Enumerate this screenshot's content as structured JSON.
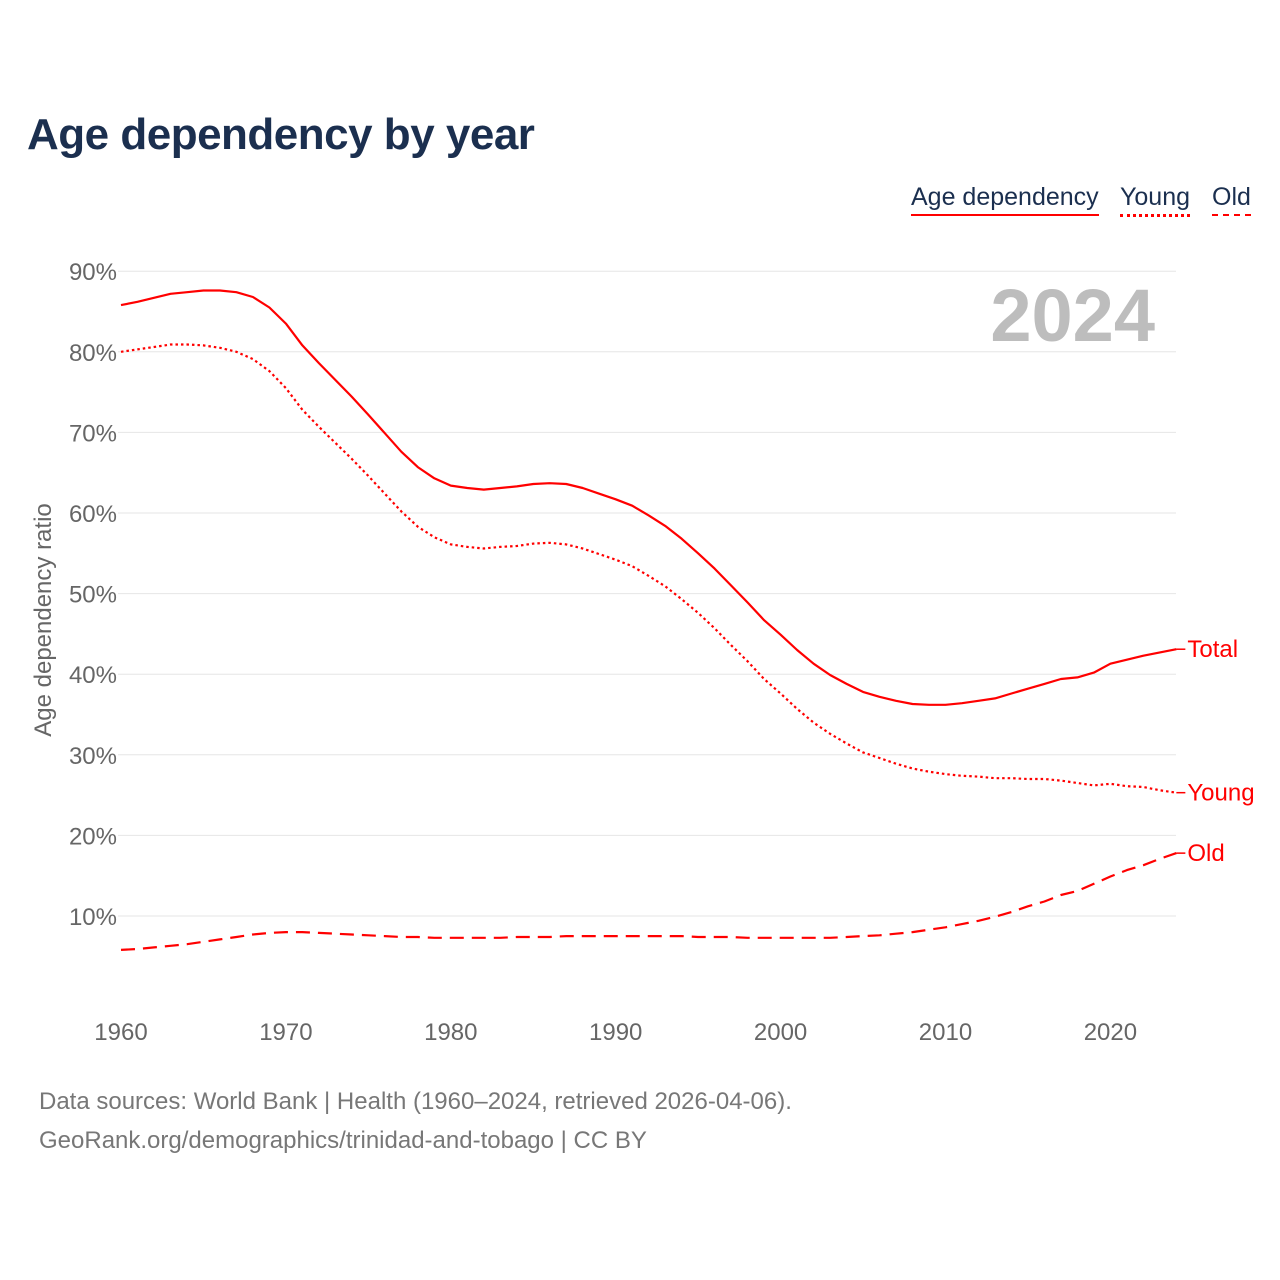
{
  "title": "Age dependency by year",
  "legend": [
    {
      "label": "Age dependency",
      "style": "solid"
    },
    {
      "label": "Young",
      "style": "dotted"
    },
    {
      "label": "Old",
      "style": "dashed"
    }
  ],
  "footer": {
    "line1": "Data sources: World Bank | Health (1960–2024, retrieved 2026-04-06).",
    "line2": "GeoRank.org/demographics/trinidad-and-tobago | CC BY"
  },
  "chart_data": {
    "type": "line",
    "title": "Age dependency by year",
    "xlabel": "",
    "ylabel": "Age dependency ratio",
    "year_watermark": "2024",
    "xlim": [
      1960,
      2024
    ],
    "ylim": [
      0,
      92
    ],
    "x_ticks": [
      1960,
      1970,
      1980,
      1990,
      2000,
      2010,
      2020
    ],
    "y_ticks": [
      10,
      20,
      30,
      40,
      50,
      60,
      70,
      80,
      90
    ],
    "y_tick_labels": [
      "10%",
      "20%",
      "30%",
      "40%",
      "50%",
      "60%",
      "70%",
      "80%",
      "90%"
    ],
    "grid": true,
    "color": "#ff0000",
    "x_start": 1960,
    "series": [
      {
        "name": "Total",
        "end_label": "Total",
        "dash": "solid",
        "values": [
          85.8,
          86.2,
          86.7,
          87.2,
          87.4,
          87.6,
          87.6,
          87.4,
          86.8,
          85.5,
          83.5,
          80.8,
          78.6,
          76.5,
          74.4,
          72.2,
          69.9,
          67.6,
          65.7,
          64.3,
          63.4,
          63.1,
          62.9,
          63.1,
          63.3,
          63.6,
          63.7,
          63.6,
          63.1,
          62.4,
          61.7,
          60.9,
          59.7,
          58.4,
          56.8,
          55.0,
          53.1,
          51.0,
          48.9,
          46.7,
          44.9,
          43.0,
          41.3,
          39.9,
          38.8,
          37.8,
          37.2,
          36.7,
          36.3,
          36.2,
          36.2,
          36.4,
          36.7,
          37.0,
          37.6,
          38.2,
          38.8,
          39.4,
          39.6,
          40.2,
          41.3,
          41.8,
          42.3,
          42.7,
          43.1
        ]
      },
      {
        "name": "Young",
        "end_label": "Young",
        "dash": "dotted",
        "values": [
          80.0,
          80.3,
          80.6,
          80.9,
          80.9,
          80.8,
          80.5,
          80.0,
          79.1,
          77.6,
          75.5,
          72.8,
          70.7,
          68.7,
          66.7,
          64.6,
          62.4,
          60.2,
          58.3,
          57.0,
          56.1,
          55.8,
          55.6,
          55.8,
          55.9,
          56.2,
          56.3,
          56.1,
          55.6,
          54.9,
          54.2,
          53.4,
          52.2,
          50.9,
          49.3,
          47.6,
          45.7,
          43.6,
          41.6,
          39.4,
          37.6,
          35.7,
          34.0,
          32.6,
          31.4,
          30.3,
          29.6,
          28.9,
          28.3,
          27.9,
          27.6,
          27.4,
          27.3,
          27.1,
          27.1,
          27.0,
          27.0,
          26.8,
          26.5,
          26.2,
          26.4,
          26.1,
          26.0,
          25.6,
          25.3
        ]
      },
      {
        "name": "Old",
        "end_label": "Old",
        "dash": "dashed",
        "values": [
          5.8,
          5.9,
          6.1,
          6.3,
          6.5,
          6.8,
          7.1,
          7.4,
          7.7,
          7.9,
          8.0,
          8.0,
          7.9,
          7.8,
          7.7,
          7.6,
          7.5,
          7.4,
          7.4,
          7.3,
          7.3,
          7.3,
          7.3,
          7.3,
          7.4,
          7.4,
          7.4,
          7.5,
          7.5,
          7.5,
          7.5,
          7.5,
          7.5,
          7.5,
          7.5,
          7.4,
          7.4,
          7.4,
          7.3,
          7.3,
          7.3,
          7.3,
          7.3,
          7.3,
          7.4,
          7.5,
          7.6,
          7.8,
          8.0,
          8.3,
          8.6,
          9.0,
          9.4,
          9.9,
          10.5,
          11.2,
          11.8,
          12.6,
          13.1,
          14.0,
          14.9,
          15.7,
          16.3,
          17.1,
          17.8
        ]
      }
    ]
  }
}
